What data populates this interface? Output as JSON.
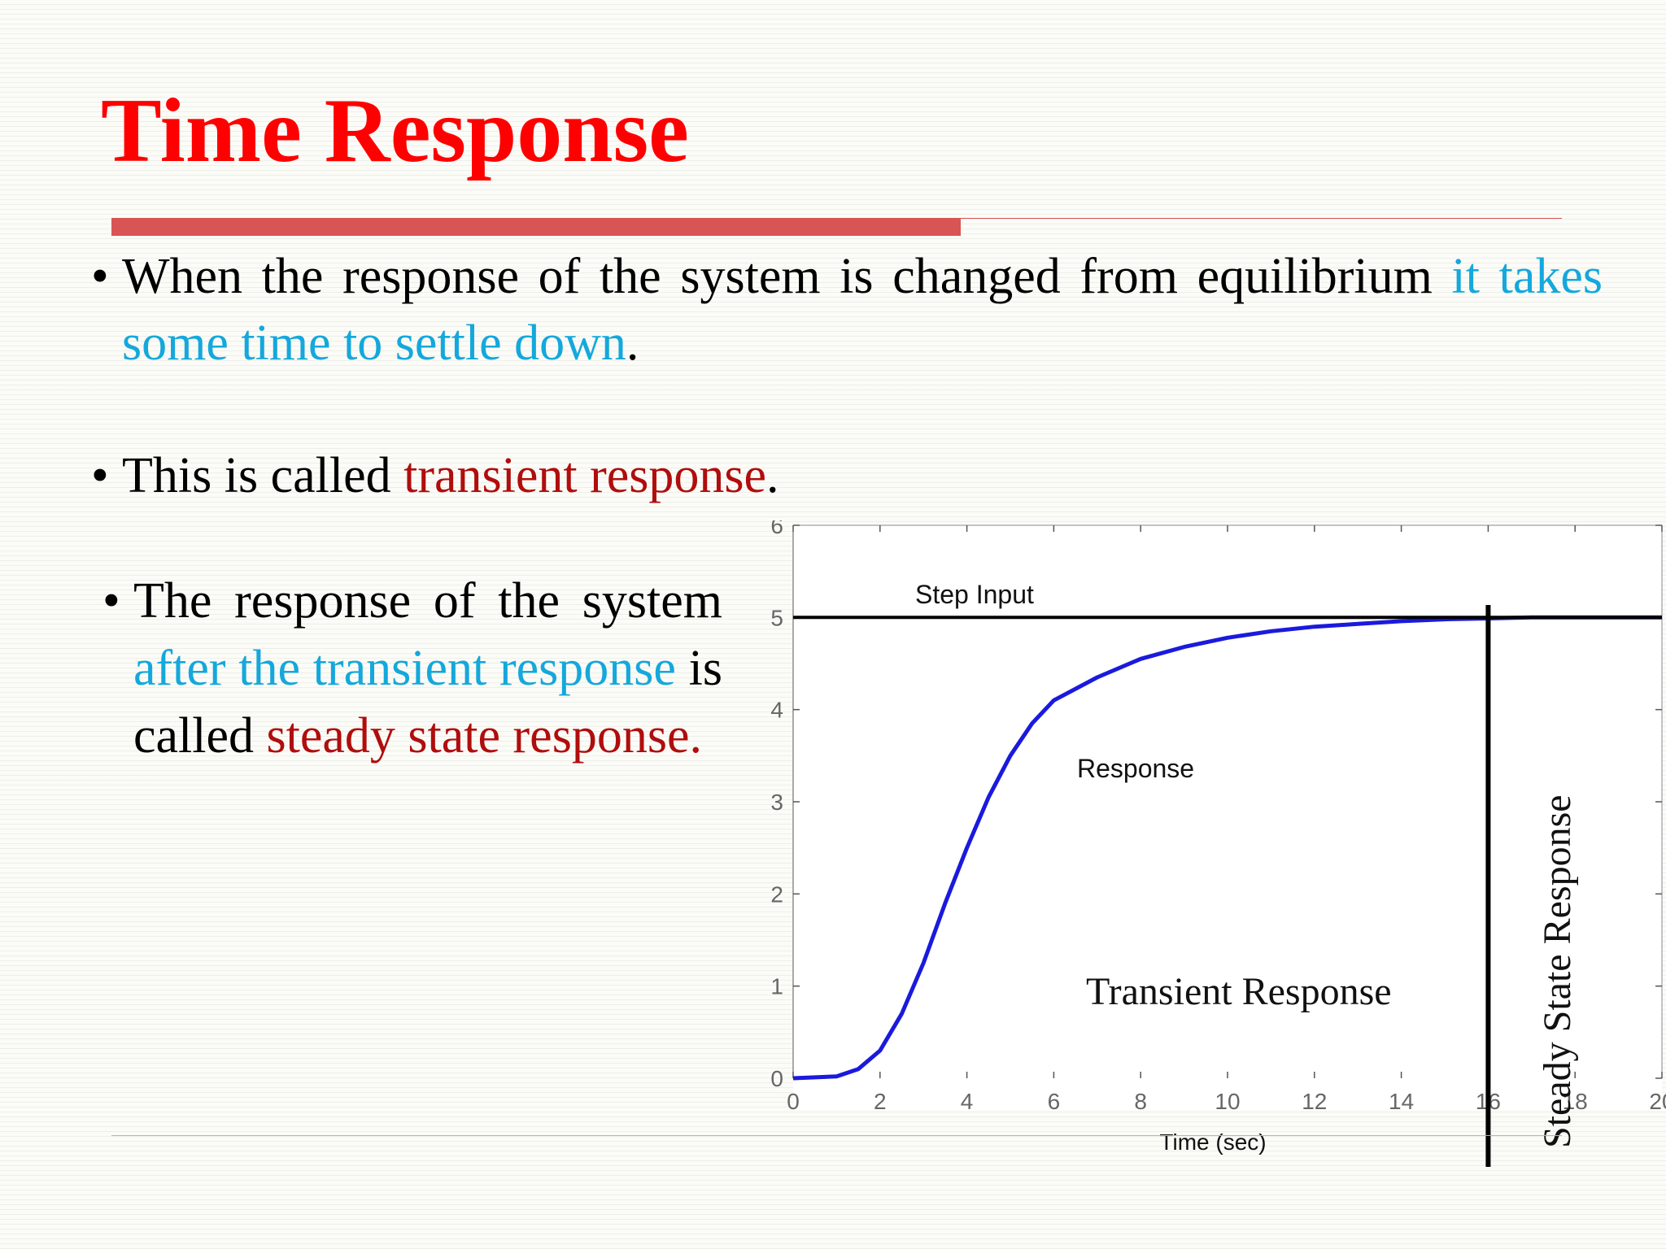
{
  "slide": {
    "title": "Time Response",
    "bullets": [
      {
        "dot": "•",
        "parts": [
          {
            "text": "When the response of the system is changed from equilibrium ",
            "color": "#000000"
          },
          {
            "text": "it takes some time to settle down",
            "color": "#14a8dc"
          },
          {
            "text": ".",
            "color": "#000000"
          }
        ]
      },
      {
        "dot": "•",
        "parts": [
          {
            "text": "This is called ",
            "color": "#000000"
          },
          {
            "text": "transient response",
            "color": "#b00d0d"
          },
          {
            "text": ".",
            "color": "#000000"
          }
        ]
      },
      {
        "dot": "•",
        "parts": [
          {
            "text": "The response of the system ",
            "color": "#000000"
          },
          {
            "text": "after the transient response",
            "color": "#14a8dc"
          },
          {
            "text": " is called ",
            "color": "#000000"
          },
          {
            "text": "steady state response.",
            "color": "#b00d0d"
          }
        ]
      }
    ],
    "colors": {
      "title": "#ff0000",
      "accent_bar": "#d95454",
      "highlight_cyan": "#14a8dc",
      "highlight_red": "#b00d0d"
    }
  },
  "chart_data": {
    "type": "line",
    "xlabel": "Time (sec)",
    "ylabel": "",
    "xlim": [
      0,
      20
    ],
    "ylim": [
      0,
      6
    ],
    "xticks": [
      "0",
      "2",
      "4",
      "6",
      "8",
      "10",
      "12",
      "14",
      "16",
      "18",
      "20"
    ],
    "yticks": [
      "0",
      "1",
      "2",
      "3",
      "4",
      "5",
      "6"
    ],
    "series": [
      {
        "name": "Response",
        "color": "#1a1add",
        "x": [
          0,
          1,
          1.5,
          2,
          2.5,
          3,
          3.5,
          4,
          4.5,
          5,
          5.5,
          6,
          7,
          8,
          9,
          10,
          11,
          12,
          13,
          14,
          15,
          16,
          17,
          18,
          19,
          20
        ],
        "y": [
          0,
          0.02,
          0.1,
          0.3,
          0.7,
          1.25,
          1.9,
          2.5,
          3.05,
          3.5,
          3.85,
          4.1,
          4.35,
          4.55,
          4.68,
          4.78,
          4.85,
          4.9,
          4.93,
          4.96,
          4.98,
          4.99,
          5.0,
          5.0,
          5.0,
          5.0
        ]
      },
      {
        "name": "Step Input",
        "color": "#000000",
        "x": [
          0,
          20
        ],
        "y": [
          5,
          5
        ]
      }
    ],
    "settling_marker_x": 16,
    "annotations": {
      "step_input": "Step Input",
      "response": "Response",
      "transient": "Transient Response",
      "steady_state": "Steady State Response"
    }
  }
}
